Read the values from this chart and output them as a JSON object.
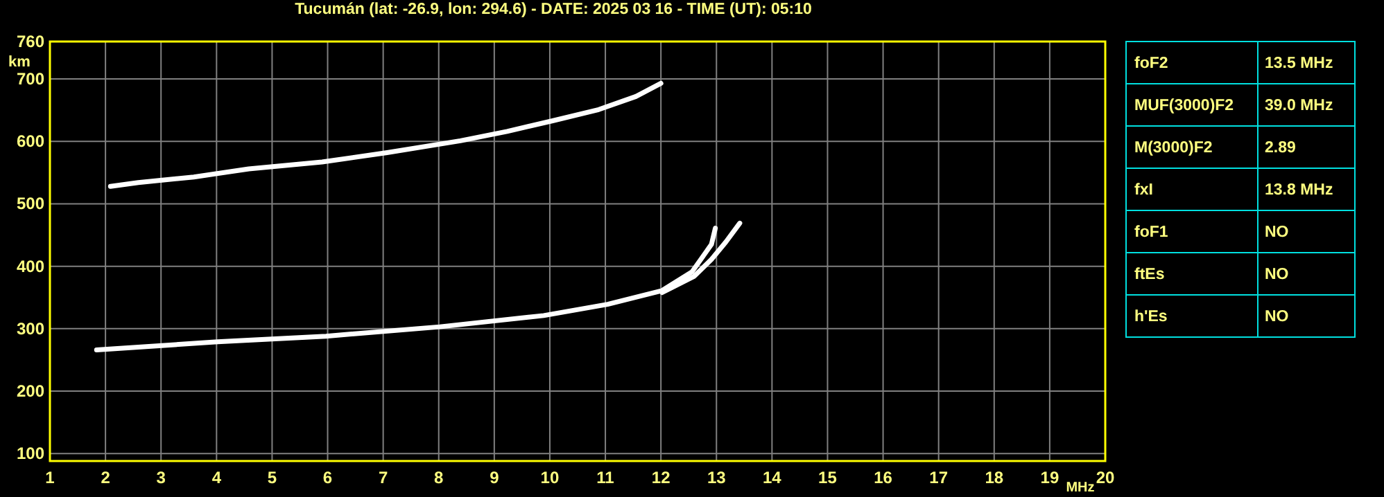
{
  "chart_data": [
    {
      "type": "line",
      "title": "Tucumán (lat: -26.9, lon: 294.6) - DATE: 2025 03 16 - TIME (UT): 05:10",
      "xlabel": "MHz",
      "ylabel": "km",
      "xlim": [
        1,
        20
      ],
      "xticks": [
        1,
        2,
        3,
        4,
        5,
        6,
        7,
        8,
        9,
        10,
        11,
        12,
        13,
        14,
        15,
        16,
        17,
        18,
        19,
        20
      ],
      "ylim": [
        88,
        760
      ],
      "yticks": [
        100,
        200,
        300,
        400,
        500,
        600,
        700,
        760
      ],
      "grid": true,
      "marker": "none",
      "line_style": "solid",
      "series": [
        {
          "color": "#ffffff",
          "x": [
            1.84,
            4.02,
            5.97,
            8.02,
            9.89,
            11.04,
            12.02,
            12.56,
            12.91,
            12.98
          ],
          "values": [
            266,
            279,
            288,
            303,
            321,
            339,
            361,
            391,
            435,
            461
          ]
        },
        {
          "color": "#ffffff",
          "x": [
            12.02,
            12.2,
            12.6,
            12.91,
            13.17,
            13.42
          ],
          "values": [
            358,
            366,
            384,
            411,
            439,
            469
          ]
        },
        {
          "color": "#ffffff",
          "x": [
            2.09,
            2.59,
            3.59,
            4.58,
            5.9,
            7.07,
            8.39,
            9.23,
            10.05,
            10.88,
            11.55,
            12.0
          ],
          "values": [
            528,
            534,
            543,
            556,
            567,
            582,
            601,
            616,
            633,
            651,
            672,
            693
          ]
        }
      ]
    },
    {
      "type": "other",
      "categories": [
        "foF2",
        "MUF(3000)F2",
        "M(3000)F2",
        "fxI",
        "foF1",
        "ftEs",
        "h'Es"
      ],
      "value_labels": [
        "13.5 MHz",
        "39.0 MHz",
        "2.89",
        "13.8 MHz",
        "NO",
        "NO",
        "NO"
      ]
    }
  ]
}
